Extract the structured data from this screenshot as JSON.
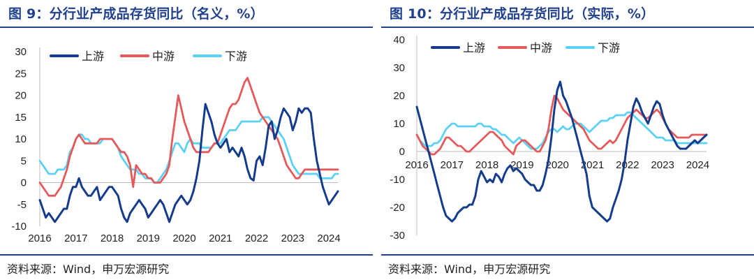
{
  "panels": [
    {
      "title": "图 9：分行业产成品存货同比（名义，%）",
      "source": "资料来源：Wind，申万宏源研究"
    },
    {
      "title": "图 10：分行业产成品存货同比（实际，%）",
      "source": "资料来源：Wind，申万宏源研究"
    }
  ],
  "colors": {
    "upstream": "#153b8c",
    "midstream": "#e5595a",
    "downstream": "#5cd1f5",
    "title": "#1f3f8f"
  },
  "chart_data": [
    {
      "type": "line",
      "title": "分行业产成品存货同比（名义，%）",
      "x_start": "2016-01",
      "x_end": "2024-04",
      "x_tick_labels": [
        "2016",
        "2017",
        "2018",
        "2019",
        "2020",
        "2021",
        "2022",
        "2023",
        "2024"
      ],
      "ylim": [
        -10,
        30
      ],
      "y_ticks": [
        -10,
        -5,
        0,
        5,
        10,
        15,
        20,
        25,
        30
      ],
      "legend": "top",
      "series": [
        {
          "name": "上游",
          "color": "#153b8c",
          "values": [
            -4,
            -6,
            -8,
            -7,
            -8,
            -9,
            -8,
            -7,
            -6,
            -6,
            -3,
            -1,
            -1,
            1,
            -1,
            -2,
            -3,
            -3,
            -2,
            -1,
            -4,
            -3,
            -2,
            -1,
            -1,
            -2,
            -3,
            -6,
            -8,
            -9,
            -7,
            -6,
            -5,
            -4,
            -5,
            -6,
            -8,
            -7,
            -6,
            -5,
            -4,
            -5,
            -7,
            -9,
            -7,
            -5,
            -4,
            -3,
            -4,
            -5,
            -4,
            -2,
            1,
            5,
            12,
            18,
            16,
            14,
            11,
            9,
            8,
            9,
            10,
            7,
            8,
            7,
            6,
            8,
            6,
            3,
            1,
            0.5,
            5,
            6,
            4,
            8,
            13,
            14,
            10,
            12,
            15,
            17,
            16,
            15,
            12,
            14,
            17,
            16,
            17,
            17,
            16,
            10,
            5,
            2,
            -1,
            -3,
            -5,
            -4,
            -3,
            -2
          ]
        },
        {
          "name": "中游",
          "color": "#e5595a",
          "values": [
            0,
            -1,
            -2,
            -3,
            -3,
            -3,
            -2,
            -1,
            1,
            3,
            6,
            8,
            10,
            11,
            10,
            9,
            9,
            9,
            9,
            9,
            10,
            10,
            10,
            10,
            10,
            9,
            8,
            7,
            7,
            6,
            4,
            -1,
            4,
            3,
            2,
            2,
            1,
            1,
            0,
            0,
            0,
            1,
            2,
            4,
            10,
            15,
            20,
            17,
            14,
            12,
            10,
            8,
            7,
            7,
            7,
            7,
            7,
            8,
            9,
            9,
            11,
            13,
            15,
            17,
            18,
            18,
            19,
            21,
            23,
            24,
            22,
            20,
            18,
            16,
            15,
            14,
            13,
            12,
            11,
            10,
            8,
            6,
            4,
            3,
            2,
            1,
            1,
            2,
            3,
            3,
            3,
            3,
            3,
            3,
            3,
            3,
            3,
            3,
            3,
            3
          ]
        },
        {
          "name": "下游",
          "color": "#5cd1f5",
          "values": [
            5,
            4,
            3,
            2,
            2,
            2,
            3,
            3,
            3,
            4,
            7,
            8,
            10,
            11,
            11,
            10,
            10,
            9,
            9,
            9,
            9,
            10,
            10,
            10,
            10,
            9,
            8,
            6,
            5,
            4,
            3,
            3,
            3,
            2,
            2,
            1,
            1,
            1,
            0,
            0,
            1,
            2,
            3,
            5,
            7,
            9,
            9,
            8,
            7,
            9,
            10,
            9,
            9,
            9,
            8,
            8,
            8,
            8,
            9,
            9,
            9,
            10,
            11,
            12,
            12,
            12,
            13,
            14,
            14,
            14,
            14,
            14,
            14,
            14,
            15,
            15,
            15,
            14,
            13,
            12,
            11,
            10,
            8,
            6,
            4,
            3,
            2,
            2,
            2,
            2,
            2,
            2,
            2,
            1,
            1,
            1,
            1,
            1,
            2,
            2
          ]
        }
      ]
    },
    {
      "type": "line",
      "title": "分行业产成品存货同比（实际，%）",
      "x_start": "2016-01",
      "x_end": "2024-04",
      "x_tick_labels": [
        "2016",
        "2017",
        "2018",
        "2019",
        "2020",
        "2021",
        "2022",
        "2023",
        "2024"
      ],
      "ylim": [
        -30,
        40
      ],
      "y_ticks": [
        -30,
        -20,
        -10,
        0,
        10,
        20,
        30,
        40
      ],
      "legend": "top",
      "series": [
        {
          "name": "上游",
          "color": "#153b8c",
          "values": [
            16,
            12,
            8,
            4,
            0,
            -4,
            -8,
            -12,
            -16,
            -20,
            -23,
            -24,
            -25,
            -24,
            -22,
            -21,
            -20,
            -20,
            -19,
            -19,
            -16,
            -10,
            -7,
            -9,
            -11,
            -10,
            -11,
            -8,
            -9,
            -11,
            -8,
            -6,
            -5,
            -7,
            -6,
            -7,
            -8,
            -10,
            -11,
            -12,
            -12,
            -14,
            -14,
            -12,
            -8,
            -3,
            5,
            15,
            22,
            25,
            20,
            18,
            15,
            12,
            8,
            4,
            0,
            -4,
            -8,
            -16,
            -20,
            -21,
            -22,
            -23,
            -24,
            -25,
            -24,
            -20,
            -17,
            -14,
            -10,
            -4,
            4,
            10,
            16,
            19,
            17,
            14,
            12,
            10,
            13,
            16,
            18,
            17,
            13,
            10,
            8,
            6,
            4,
            2,
            1,
            1,
            1,
            2,
            3,
            4,
            3,
            4,
            5,
            6
          ]
        },
        {
          "name": "中游",
          "color": "#e5595a",
          "values": [
            6,
            4,
            2,
            1,
            0,
            -1,
            -1,
            0,
            1,
            3,
            5,
            5,
            4,
            3,
            2,
            2,
            1,
            0,
            0,
            1,
            2,
            3,
            4,
            5,
            6,
            7,
            7,
            6,
            5,
            4,
            2,
            1,
            0,
            -1,
            2,
            3,
            4,
            4,
            3,
            2,
            1,
            0,
            0,
            2,
            4,
            8,
            15,
            20,
            19,
            17,
            15,
            14,
            13,
            12,
            11,
            10,
            9,
            8,
            6,
            4,
            3,
            2,
            1,
            1,
            2,
            3,
            4,
            3,
            4,
            6,
            8,
            10,
            12,
            13,
            14,
            15,
            14,
            13,
            12,
            12,
            13,
            14,
            15,
            14,
            12,
            10,
            8,
            7,
            6,
            5,
            5,
            5,
            5,
            5,
            6,
            6,
            6,
            6,
            6,
            6
          ]
        },
        {
          "name": "下游",
          "color": "#5cd1f5",
          "values": [
            6,
            4,
            3,
            2,
            2,
            2,
            3,
            3,
            4,
            6,
            8,
            9,
            10,
            10,
            9,
            9,
            9,
            9,
            9,
            9,
            9,
            10,
            10,
            9,
            9,
            9,
            8,
            8,
            7,
            6,
            6,
            5,
            4,
            3,
            4,
            5,
            4,
            3,
            2,
            1,
            1,
            1,
            2,
            3,
            5,
            7,
            8,
            8,
            7,
            8,
            9,
            8,
            8,
            9,
            10,
            10,
            10,
            9,
            8,
            7,
            8,
            9,
            10,
            11,
            11,
            11,
            12,
            12,
            13,
            13,
            13,
            13,
            14,
            14,
            13,
            12,
            11,
            10,
            9,
            8,
            7,
            6,
            5,
            5,
            5,
            4,
            4,
            4,
            4,
            3,
            3,
            3,
            3,
            3,
            3,
            3,
            3,
            3,
            3,
            3
          ]
        }
      ]
    }
  ]
}
